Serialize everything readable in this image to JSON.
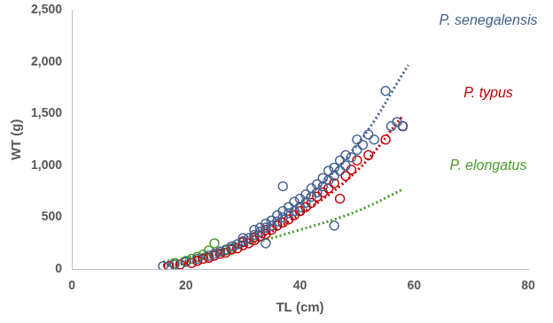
{
  "chart_data": {
    "type": "scatter",
    "x_label": "TL (cm)",
    "y_label": "WT (g)",
    "xlim": [
      0,
      80
    ],
    "xticks": [
      0,
      20,
      40,
      60,
      80
    ],
    "ylim": [
      0,
      2500
    ],
    "yticks": [
      0,
      500,
      1000,
      1500,
      2000,
      2500
    ],
    "grid": false,
    "legend": "right",
    "series": [
      {
        "name": "P. senegalensis",
        "color": "#44618f",
        "marker": "circle",
        "x": [
          16,
          18,
          20,
          22,
          24,
          25,
          26,
          27,
          28,
          29,
          30,
          30,
          31,
          32,
          32,
          33,
          33,
          34,
          34,
          35,
          35,
          36,
          36,
          37,
          37,
          38,
          38,
          39,
          39,
          40,
          40,
          41,
          41,
          42,
          42,
          43,
          43,
          44,
          44,
          45,
          45,
          46,
          46,
          47,
          47,
          48,
          48,
          49,
          50,
          50,
          51,
          52,
          53,
          55,
          56,
          57,
          58,
          37,
          46,
          34
        ],
        "values": [
          30,
          45,
          70,
          100,
          130,
          150,
          170,
          190,
          220,
          240,
          270,
          300,
          300,
          330,
          380,
          360,
          400,
          400,
          440,
          420,
          470,
          460,
          520,
          500,
          560,
          540,
          600,
          560,
          650,
          600,
          680,
          640,
          720,
          700,
          780,
          740,
          820,
          800,
          880,
          860,
          950,
          900,
          980,
          950,
          1050,
          1000,
          1100,
          1080,
          1150,
          1250,
          1200,
          1300,
          1250,
          1720,
          1380,
          1420,
          1380,
          800,
          420,
          250
        ],
        "trend": {
          "line_style": "dotted",
          "x": [
            16,
            20,
            30,
            40,
            50,
            59
          ],
          "values": [
            40,
            80,
            290,
            640,
            1200,
            1970
          ]
        }
      },
      {
        "name": "P. typus",
        "color": "#c00000",
        "marker": "circle",
        "x": [
          17,
          19,
          21,
          22,
          23,
          24,
          25,
          26,
          27,
          28,
          29,
          30,
          30,
          31,
          32,
          32,
          33,
          34,
          34,
          35,
          36,
          37,
          38,
          39,
          40,
          41,
          42,
          43,
          44,
          45,
          46,
          47,
          48,
          49,
          50,
          52,
          55,
          58
        ],
        "values": [
          30,
          45,
          60,
          80,
          100,
          110,
          130,
          150,
          160,
          190,
          200,
          230,
          260,
          250,
          280,
          310,
          320,
          340,
          380,
          380,
          420,
          450,
          480,
          520,
          560,
          600,
          640,
          700,
          740,
          780,
          830,
          680,
          900,
          960,
          1050,
          1100,
          1250,
          1380
        ],
        "trend": {
          "line_style": "dotted",
          "x": [
            16,
            20,
            30,
            40,
            50,
            58
          ],
          "values": [
            30,
            60,
            230,
            530,
            950,
            1480
          ]
        }
      },
      {
        "name": "P. elongatus",
        "color": "#4a9a2e",
        "marker": "circle",
        "x": [
          18,
          20,
          21,
          22,
          23,
          24,
          25,
          26,
          27,
          28
        ],
        "values": [
          60,
          80,
          100,
          120,
          140,
          180,
          250,
          170,
          180,
          200
        ],
        "trend": {
          "line_style": "dotted",
          "x": [
            16,
            20,
            30,
            40,
            50,
            58
          ],
          "values": [
            70,
            110,
            230,
            380,
            560,
            770
          ]
        }
      }
    ]
  }
}
